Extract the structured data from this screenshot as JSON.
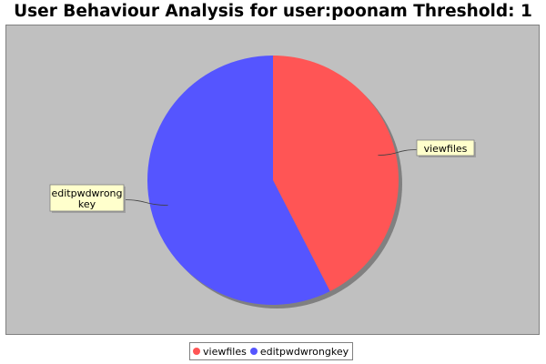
{
  "chart_data": {
    "type": "pie",
    "title": "User Behaviour Analysis for user:poonam Threshold: 1",
    "categories": [
      "viewfiles",
      "editpwdwrongkey"
    ],
    "values": [
      42.5,
      57.5
    ],
    "slice_labels": [
      [
        "viewfiles"
      ],
      [
        "editpwdwrong",
        "key"
      ]
    ],
    "legend_position": "bottom",
    "colors": [
      "#ff5555",
      "#5555ff"
    ],
    "plot_background": "#c0c0c0",
    "label_background": "#ffffcc"
  }
}
